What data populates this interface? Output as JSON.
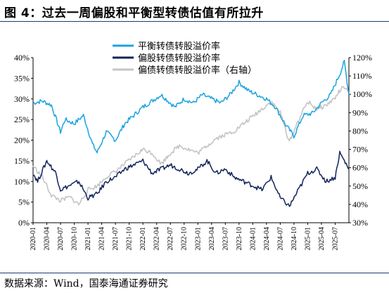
{
  "title": "图 4：过去一周偏股和平衡型转债估值有所拉升",
  "source": "数据来源：Wind，国泰海通证券研究",
  "chart_data": {
    "type": "line",
    "title": "",
    "xlabel": "",
    "ylabel": "",
    "legend_position": "top-center",
    "grid": false,
    "x_ticks": [
      "2020-01",
      "2020-04",
      "2020-07",
      "2020-10",
      "2021-01",
      "2021-04",
      "2021-07",
      "2021-10",
      "2022-01",
      "2022-04",
      "2022-07",
      "2022-10",
      "2023-01",
      "2023-04",
      "2023-07",
      "2023-10",
      "2024-01",
      "2024-04",
      "2024-07",
      "2024-10",
      "2025-01",
      "2025-04",
      "2025-07"
    ],
    "x_range": [
      "2020-01",
      "2025-10"
    ],
    "y_left": {
      "ticks": [
        "0%",
        "5%",
        "10%",
        "15%",
        "20%",
        "25%",
        "30%",
        "35%",
        "40%"
      ],
      "range": [
        0,
        40
      ]
    },
    "y_right": {
      "ticks": [
        "30%",
        "40%",
        "50%",
        "60%",
        "70%",
        "80%",
        "90%",
        "100%",
        "110%",
        "120%"
      ],
      "range": [
        30,
        120
      ]
    },
    "series": [
      {
        "name": "平衡转债转股溢价率",
        "axis": "left",
        "color": "#1aa3e0",
        "x": [
          "2020-01",
          "2020-03",
          "2020-05",
          "2020-07",
          "2020-08",
          "2020-10",
          "2020-12",
          "2021-02",
          "2021-03",
          "2021-05",
          "2021-07",
          "2021-09",
          "2021-11",
          "2022-01",
          "2022-03",
          "2022-05",
          "2022-06",
          "2022-08",
          "2022-10",
          "2022-12",
          "2023-02",
          "2023-04",
          "2023-06",
          "2023-08",
          "2023-10",
          "2023-12",
          "2024-02",
          "2024-04",
          "2024-06",
          "2024-08",
          "2024-10",
          "2024-12",
          "2025-02",
          "2025-04",
          "2025-06",
          "2025-08",
          "2025-09",
          "2025-10"
        ],
        "y": [
          29,
          29.5,
          28.5,
          22,
          25,
          24,
          26,
          19,
          17,
          22,
          20,
          24,
          26,
          28,
          29.5,
          31,
          30,
          28,
          30,
          29,
          31,
          30,
          29,
          31,
          34,
          32,
          31,
          30,
          28,
          24,
          21,
          26,
          26.5,
          29,
          31,
          36,
          39,
          31
        ]
      },
      {
        "name": "偏股转债转股溢价率",
        "axis": "left",
        "color": "#12245a",
        "x": [
          "2020-01",
          "2020-02",
          "2020-04",
          "2020-06",
          "2020-07",
          "2020-09",
          "2020-11",
          "2021-01",
          "2021-03",
          "2021-05",
          "2021-07",
          "2021-09",
          "2021-11",
          "2022-01",
          "2022-03",
          "2022-05",
          "2022-07",
          "2022-09",
          "2022-11",
          "2023-01",
          "2023-03",
          "2023-05",
          "2023-07",
          "2023-09",
          "2023-11",
          "2024-01",
          "2024-03",
          "2024-05",
          "2024-07",
          "2024-09",
          "2024-11",
          "2025-01",
          "2025-03",
          "2025-05",
          "2025-07",
          "2025-08",
          "2025-09",
          "2025-10"
        ],
        "y": [
          12,
          10,
          15,
          12,
          8,
          9,
          10,
          6,
          7,
          10,
          11,
          13,
          14,
          15,
          12,
          13,
          14,
          13,
          12,
          13,
          15,
          12,
          13,
          11,
          10,
          9,
          8,
          11,
          6,
          4,
          8,
          12,
          13,
          10,
          11,
          17,
          15,
          13
        ]
      },
      {
        "name": "偏债转债转股溢价率（右轴）",
        "axis": "right",
        "color": "#c4c4c4",
        "x": [
          "2020-01",
          "2020-03",
          "2020-05",
          "2020-07",
          "2020-09",
          "2020-11",
          "2021-01",
          "2021-03",
          "2021-05",
          "2021-07",
          "2021-09",
          "2021-11",
          "2022-01",
          "2022-03",
          "2022-05",
          "2022-07",
          "2022-09",
          "2022-11",
          "2023-01",
          "2023-03",
          "2023-05",
          "2023-07",
          "2023-09",
          "2023-11",
          "2024-01",
          "2024-03",
          "2024-05",
          "2024-07",
          "2024-09",
          "2024-11",
          "2025-01",
          "2025-03",
          "2025-05",
          "2025-07",
          "2025-08",
          "2025-09",
          "2025-10"
        ],
        "y": [
          61,
          55,
          45,
          42,
          44,
          40,
          48,
          50,
          55,
          58,
          62,
          66,
          70,
          68,
          62,
          68,
          72,
          70,
          68,
          72,
          76,
          78,
          80,
          84,
          88,
          92,
          96,
          90,
          74,
          86,
          96,
          92,
          94,
          98,
          102,
          104,
          100
        ]
      }
    ]
  }
}
